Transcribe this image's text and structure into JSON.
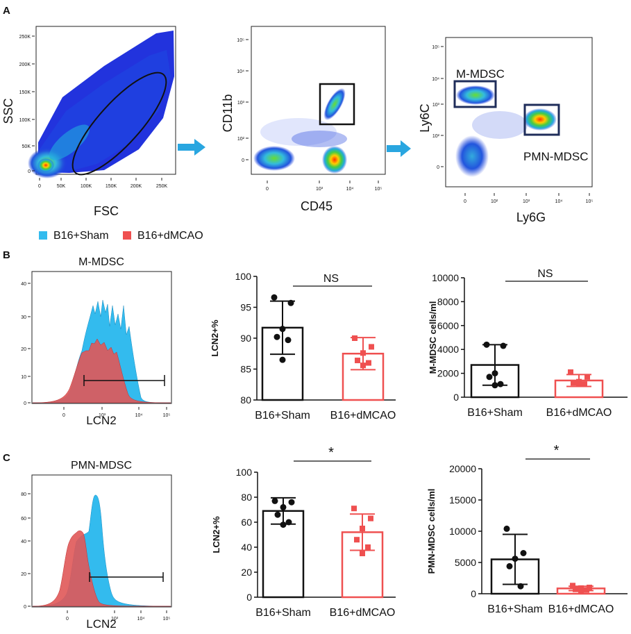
{
  "panels": {
    "A": "A",
    "B": "B",
    "C": "C"
  },
  "colors": {
    "sham": "#33bbee",
    "dmcao": "#ef5050",
    "gate": "#1f2d5a",
    "arrow": "#29a6e0"
  },
  "flow": {
    "fsc_ssc": {
      "xlabel": "FSC",
      "ylabel": "SSC",
      "xticks": [
        "0",
        "50K",
        "100K",
        "150K",
        "200K",
        "250K"
      ],
      "yticks": [
        "0",
        "50K",
        "100K",
        "150K",
        "200K",
        "250K"
      ]
    },
    "cd45_cd11b": {
      "xlabel": "CD45",
      "ylabel": "CD11b",
      "xticks": [
        "0",
        "10³",
        "10⁴",
        "10⁵"
      ],
      "yticks": [
        "0",
        "10²",
        "10³",
        "10⁴",
        "10⁵"
      ]
    },
    "ly6g_ly6c": {
      "xlabel": "Ly6G",
      "ylabel": "Ly6C",
      "xticks": [
        "0",
        "10²",
        "10³",
        "10⁴",
        "10⁵"
      ],
      "yticks": [
        "0",
        "10²",
        "10³",
        "10⁴",
        "10⁵"
      ],
      "gate_m": "M-MDSC",
      "gate_pmn": "PMN-MDSC"
    }
  },
  "legend": {
    "sham": "B16+Sham",
    "dmcao": "B16+dMCAO"
  },
  "histB": {
    "title": "M-MDSC",
    "xlabel": "LCN2",
    "yticks": [
      "0",
      "10",
      "20",
      "30",
      "40"
    ],
    "xticks": [
      "0",
      "10³",
      "10⁴",
      "10⁵"
    ]
  },
  "histC": {
    "title": "PMN-MDSC",
    "xlabel": "LCN2",
    "yticks": [
      "0",
      "20",
      "40",
      "60",
      "80"
    ],
    "xticks": [
      "0",
      "10³",
      "10⁴",
      "10⁵"
    ]
  },
  "chart_data": [
    {
      "type": "bar",
      "panel": "B",
      "ylabel": "LCN2+%",
      "categories": [
        "B16+Sham",
        "B16+dMCAO"
      ],
      "ylim": [
        80,
        100
      ],
      "yticks": [
        "80",
        "85",
        "90",
        "95",
        "100"
      ],
      "means": [
        91.7,
        87.5
      ],
      "sd": [
        4.3,
        2.6
      ],
      "points": [
        [
          96.6,
          95.7,
          91.5,
          90.2,
          89.7,
          86.5
        ],
        [
          90.0,
          88.6,
          87.6,
          86.4,
          86.0,
          85.6
        ]
      ],
      "significance": "NS"
    },
    {
      "type": "bar",
      "panel": "B",
      "ylabel": "M-MDSC cells/ml",
      "categories": [
        "B16+Sham",
        "B16+dMCAO"
      ],
      "ylim": [
        0,
        10000
      ],
      "yticks": [
        "0",
        "2000",
        "4000",
        "6000",
        "8000",
        "10000"
      ],
      "means": [
        2700,
        1400
      ],
      "sd": [
        1700,
        500
      ],
      "points": [
        [
          4400,
          4300,
          2000,
          1700,
          1100,
          1000
        ],
        [
          2100,
          1700,
          1300,
          1200,
          1100,
          1100
        ]
      ],
      "significance": "NS"
    },
    {
      "type": "bar",
      "panel": "C",
      "ylabel": "LCN2+%",
      "categories": [
        "B16+Sham",
        "B16+dMCAO"
      ],
      "ylim": [
        0,
        100
      ],
      "yticks": [
        "0",
        "20",
        "40",
        "60",
        "80",
        "100"
      ],
      "means": [
        69,
        52
      ],
      "sd": [
        10.5,
        14.5
      ],
      "points": [
        [
          77,
          76,
          72,
          66,
          60,
          58
        ],
        [
          71,
          63,
          55,
          46,
          40,
          35
        ]
      ],
      "significance": "*"
    },
    {
      "type": "bar",
      "panel": "C",
      "ylabel": "PMN-MDSC cells/ml",
      "categories": [
        "B16+Sham",
        "B16+dMCAO"
      ],
      "ylim": [
        0,
        20000
      ],
      "yticks": [
        "0",
        "5000",
        "10000",
        "15000",
        "20000"
      ],
      "means": [
        5500,
        850
      ],
      "sd": [
        4000,
        350
      ],
      "points": [
        [
          10400,
          6500,
          5600,
          4400,
          1200
        ],
        [
          1300,
          1000,
          900,
          700,
          600,
          500
        ]
      ],
      "significance": "*"
    }
  ]
}
